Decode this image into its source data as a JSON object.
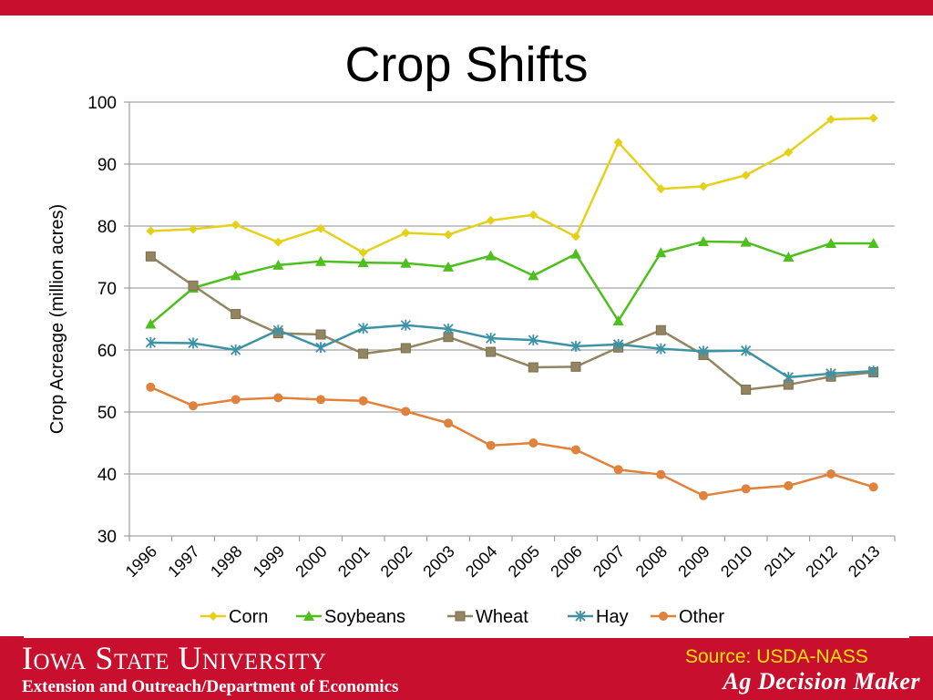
{
  "title": "Crop Shifts",
  "footer": {
    "university": "Iowa State University",
    "department": "Extension and Outreach/Department of Economics",
    "source": "Source: USDA-NASS",
    "program": "Ag Decision Maker"
  },
  "colors": {
    "brand_red": "#c8102e",
    "source_text": "#ffe600",
    "corn": "#e5d11a",
    "soybeans": "#4fbf1f",
    "wheat": "#938561",
    "hay": "#3d93a6",
    "other": "#e0823c"
  },
  "chart_data": {
    "type": "line",
    "title": "",
    "xlabel": "",
    "ylabel": "Crop Acreage (million acres)",
    "ylim": [
      30,
      100
    ],
    "yticks": [
      30,
      40,
      50,
      60,
      70,
      80,
      90,
      100
    ],
    "grid": true,
    "legend": "bottom",
    "categories": [
      "1996",
      "1997",
      "1998",
      "1999",
      "2000",
      "2001",
      "2002",
      "2003",
      "2004",
      "2005",
      "2006",
      "2007",
      "2008",
      "2009",
      "2010",
      "2011",
      "2012",
      "2013"
    ],
    "series": [
      {
        "name": "Corn",
        "marker": "diamond",
        "color": "#e5d11a",
        "values": [
          79.2,
          79.5,
          80.2,
          77.4,
          79.6,
          75.7,
          78.9,
          78.6,
          80.9,
          81.8,
          78.3,
          93.5,
          86.0,
          86.4,
          88.2,
          91.9,
          97.2,
          97.4
        ]
      },
      {
        "name": "Soybeans",
        "marker": "triangle",
        "color": "#4fbf1f",
        "values": [
          64.2,
          70.0,
          72.0,
          73.7,
          74.3,
          74.1,
          74.0,
          73.4,
          75.2,
          72.0,
          75.5,
          64.7,
          75.7,
          77.5,
          77.4,
          75.0,
          77.2,
          77.2
        ]
      },
      {
        "name": "Wheat",
        "marker": "square",
        "color": "#938561",
        "values": [
          75.1,
          70.4,
          65.8,
          62.7,
          62.5,
          59.4,
          60.3,
          62.1,
          59.7,
          57.2,
          57.3,
          60.4,
          63.2,
          59.2,
          53.6,
          54.4,
          55.7,
          56.4
        ]
      },
      {
        "name": "Hay",
        "marker": "asterisk",
        "color": "#3d93a6",
        "values": [
          61.2,
          61.1,
          60.0,
          63.2,
          60.4,
          63.5,
          64.0,
          63.4,
          61.9,
          61.6,
          60.6,
          60.9,
          60.2,
          59.8,
          59.9,
          55.6,
          56.2,
          56.6
        ]
      },
      {
        "name": "Other",
        "marker": "circle",
        "color": "#e0823c",
        "values": [
          54.0,
          51.0,
          52.0,
          52.3,
          52.0,
          51.8,
          50.1,
          48.2,
          44.6,
          45.0,
          43.9,
          40.7,
          39.9,
          36.5,
          37.6,
          38.1,
          40.0,
          37.9
        ]
      }
    ]
  }
}
